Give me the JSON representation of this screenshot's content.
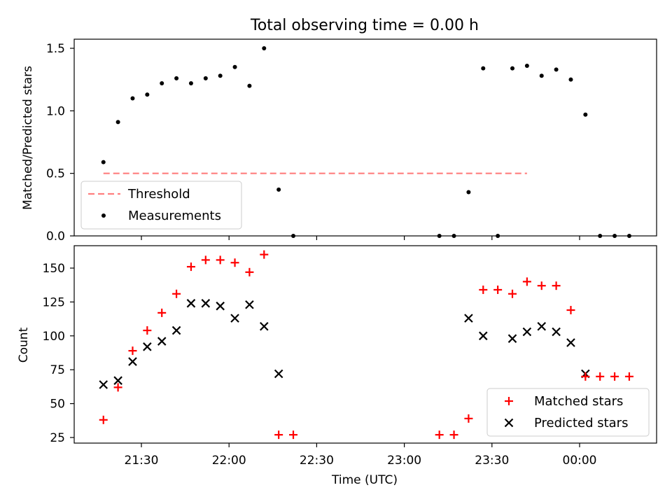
{
  "chart_data": [
    {
      "type": "scatter",
      "title": "Total observing time = 0.00 h",
      "xlabel": "",
      "ylabel": "Matched/Predicted stars",
      "ylim": [
        0,
        1.58
      ],
      "yticks": [
        "0.0",
        "0.5",
        "1.0",
        "1.5"
      ],
      "threshold": {
        "name": "Threshold",
        "value": 0.5,
        "x_range": [
          "21:17",
          "23:42"
        ],
        "color": "#ff7f7f"
      },
      "series": [
        {
          "name": "Measurements",
          "color": "#000000",
          "marker": "dot",
          "x": [
            "21:17",
            "21:22",
            "21:27",
            "21:32",
            "21:37",
            "21:42",
            "21:47",
            "21:52",
            "21:57",
            "22:02",
            "22:07",
            "22:12",
            "22:17",
            "22:22",
            "23:12",
            "23:17",
            "23:22",
            "23:27",
            "23:32",
            "23:37",
            "23:42",
            "23:47",
            "23:52",
            "23:57",
            "00:02",
            "00:07",
            "00:12",
            "00:17"
          ],
          "values": [
            0.59,
            0.91,
            1.1,
            1.13,
            1.22,
            1.26,
            1.22,
            1.26,
            1.28,
            1.35,
            1.2,
            1.5,
            0.37,
            0.0,
            0.0,
            0.0,
            0.35,
            1.34,
            0.0,
            1.34,
            1.36,
            1.28,
            1.33,
            1.25,
            0.97,
            0.0,
            0.0,
            0.0
          ]
        }
      ],
      "legend": "lower-left",
      "grid": false
    },
    {
      "type": "scatter",
      "title": "",
      "xlabel": "Time (UTC)",
      "ylabel": "Count",
      "ylim": [
        20,
        166
      ],
      "yticks": [
        "25",
        "50",
        "75",
        "100",
        "125",
        "150"
      ],
      "xticks": [
        "21:30",
        "22:00",
        "22:30",
        "23:00",
        "23:30",
        "00:00"
      ],
      "series": [
        {
          "name": "Matched stars",
          "color": "#ff0000",
          "marker": "plus",
          "x": [
            "21:17",
            "21:22",
            "21:27",
            "21:32",
            "21:37",
            "21:42",
            "21:47",
            "21:52",
            "21:57",
            "22:02",
            "22:07",
            "22:12",
            "22:17",
            "22:22",
            "23:12",
            "23:17",
            "23:22",
            "23:27",
            "23:32",
            "23:37",
            "23:42",
            "23:47",
            "23:52",
            "23:57",
            "00:02",
            "00:07",
            "00:12",
            "00:17"
          ],
          "values": [
            38,
            62,
            89,
            104,
            117,
            131,
            151,
            156,
            156,
            154,
            147,
            160,
            27,
            27,
            27,
            27,
            39,
            134,
            134,
            131,
            140,
            137,
            137,
            119,
            70,
            70,
            70,
            70
          ]
        },
        {
          "name": "Predicted stars",
          "color": "#000000",
          "marker": "x",
          "x": [
            "21:17",
            "21:22",
            "21:27",
            "21:32",
            "21:37",
            "21:42",
            "21:47",
            "21:52",
            "21:57",
            "22:02",
            "22:07",
            "22:12",
            "22:17",
            "23:22",
            "23:27",
            "23:37",
            "23:42",
            "23:47",
            "23:52",
            "23:57",
            "00:02"
          ],
          "values": [
            64,
            67,
            81,
            92,
            96,
            104,
            124,
            124,
            122,
            113,
            123,
            107,
            72,
            113,
            100,
            98,
            103,
            107,
            103,
            95,
            72
          ]
        }
      ],
      "legend": "lower-right",
      "grid": false
    }
  ]
}
